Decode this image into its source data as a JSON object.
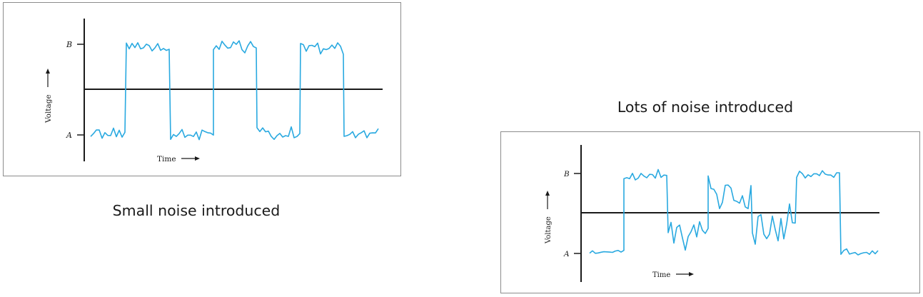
{
  "diagrams": [
    {
      "caption": "Small noise introduced",
      "level_high_label": "B",
      "level_low_label": "A",
      "y_axis_label": "Voltage",
      "x_axis_label": "Time",
      "line_color": "#29a9e0",
      "noise": "small"
    },
    {
      "caption": "Lots of noise introduced",
      "level_high_label": "B",
      "level_low_label": "A",
      "y_axis_label": "Voltage",
      "x_axis_label": "Time",
      "line_color": "#29a9e0",
      "noise": "large"
    }
  ]
}
